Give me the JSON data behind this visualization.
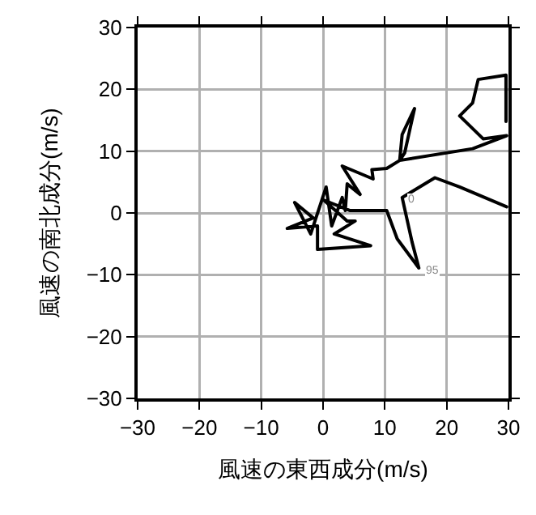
{
  "chart_data": {
    "type": "line",
    "xlabel": "風速の東西成分(m/s)",
    "ylabel": "風速の南北成分(m/s)",
    "xlim": [
      -30,
      30
    ],
    "ylim": [
      -30,
      30
    ],
    "xticks": [
      -30,
      -20,
      -10,
      0,
      10,
      20,
      30
    ],
    "yticks": [
      -30,
      -20,
      -10,
      0,
      10,
      20,
      30
    ],
    "grid": true,
    "marker": "none",
    "line_style": "solid",
    "annotations": [
      {
        "text": "0",
        "x": 12.8,
        "y": 2.5
      },
      {
        "text": "95",
        "x": 15.5,
        "y": -8.9
      }
    ],
    "series": [
      {
        "color": "#000000",
        "x": [
          29.7,
          22.1,
          18.1,
          12.8,
          14.4,
          15.5,
          12.0,
          10.3,
          4.3,
          0.1,
          3.9,
          5.2,
          1.8,
          7.7,
          -0.9,
          -0.9,
          -5.8,
          -1.6,
          -4.6,
          -2.0,
          0.5,
          1.4,
          3.1,
          3.6,
          3.9,
          6.0,
          3.1,
          8.1,
          7.9,
          10.3,
          12.4,
          12.8,
          14.8,
          13.2,
          12.4,
          24.2,
          29.7,
          25.9,
          22.1,
          24.2,
          25.1,
          29.6,
          29.6
        ],
        "values": [
          1.0,
          4.2,
          5.7,
          2.5,
          -4.7,
          -8.9,
          -4.2,
          0.4,
          0.4,
          2.1,
          -1.3,
          -1.3,
          -3.4,
          -5.3,
          -5.9,
          -2.1,
          -2.5,
          -0.8,
          1.7,
          -3.4,
          4.2,
          -2.1,
          2.5,
          0.4,
          4.7,
          3.0,
          7.6,
          5.5,
          7.0,
          7.2,
          8.5,
          12.7,
          16.9,
          9.7,
          8.5,
          10.4,
          12.5,
          12.0,
          15.7,
          17.8,
          21.6,
          22.3,
          14.8
        ]
      }
    ]
  }
}
